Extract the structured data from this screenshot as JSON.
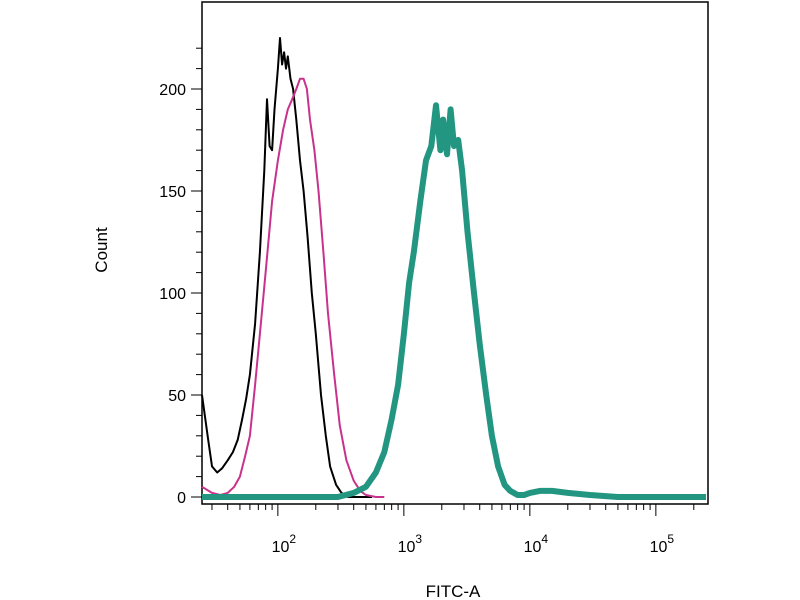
{
  "chart_data": {
    "type": "line",
    "title": "",
    "xlabel": "FITC-A",
    "ylabel": "Count",
    "x_scale": "log",
    "xlim": [
      25,
      250000
    ],
    "ylim": [
      0,
      232
    ],
    "grid": false,
    "y_ticks": [
      0,
      50,
      100,
      150,
      200
    ],
    "y_tick_labels": [
      "0",
      "50",
      "100",
      "150",
      "200"
    ],
    "x_ticks": [
      100,
      1000,
      10000,
      100000
    ],
    "x_tick_labels": [
      {
        "base": "10",
        "exp": "2"
      },
      {
        "base": "10",
        "exp": "3"
      },
      {
        "base": "10",
        "exp": "4"
      },
      {
        "base": "10",
        "exp": "5"
      }
    ],
    "series": [
      {
        "color": "#000000",
        "x": [
          25,
          28,
          30,
          33,
          36,
          40,
          44,
          48,
          52,
          56,
          60,
          66,
          72,
          78,
          82,
          86,
          90,
          94,
          100,
          104,
          108,
          112,
          116,
          120,
          126,
          132,
          140,
          150,
          160,
          172,
          186,
          200,
          220,
          240,
          260,
          290,
          320,
          360,
          400,
          450,
          500,
          560
        ],
        "y": [
          50,
          28,
          15,
          12,
          14,
          18,
          22,
          28,
          38,
          48,
          60,
          85,
          120,
          160,
          195,
          172,
          170,
          190,
          210,
          225,
          212,
          218,
          210,
          216,
          205,
          200,
          185,
          165,
          150,
          128,
          100,
          80,
          50,
          30,
          15,
          6,
          2,
          0,
          0,
          0,
          0,
          0
        ]
      },
      {
        "color": "#c8328c",
        "x": [
          25,
          30,
          35,
          40,
          45,
          50,
          55,
          60,
          66,
          72,
          80,
          90,
          100,
          110,
          120,
          130,
          140,
          150,
          160,
          170,
          180,
          195,
          210,
          230,
          250,
          280,
          310,
          350,
          400,
          450,
          500,
          600,
          700
        ],
        "y": [
          5,
          2,
          1,
          2,
          5,
          10,
          20,
          30,
          55,
          80,
          110,
          145,
          165,
          180,
          190,
          195,
          200,
          205,
          205,
          200,
          185,
          170,
          150,
          120,
          90,
          60,
          35,
          18,
          8,
          3,
          1,
          0,
          0
        ]
      },
      {
        "color": "#239682",
        "x": [
          25,
          300,
          400,
          500,
          600,
          700,
          800,
          900,
          1000,
          1100,
          1200,
          1350,
          1500,
          1650,
          1800,
          1950,
          2050,
          2200,
          2350,
          2500,
          2700,
          2900,
          3200,
          3600,
          4000,
          4500,
          5000,
          5600,
          6300,
          7000,
          8000,
          9000,
          10000,
          12000,
          15000,
          20000,
          30000,
          50000,
          250000
        ],
        "y": [
          0,
          0,
          2,
          5,
          12,
          22,
          38,
          55,
          80,
          105,
          120,
          145,
          165,
          172,
          192,
          170,
          185,
          168,
          190,
          172,
          175,
          160,
          130,
          100,
          75,
          50,
          30,
          15,
          6,
          3,
          1,
          1,
          2,
          3,
          3,
          2,
          1,
          0,
          0
        ]
      }
    ]
  }
}
